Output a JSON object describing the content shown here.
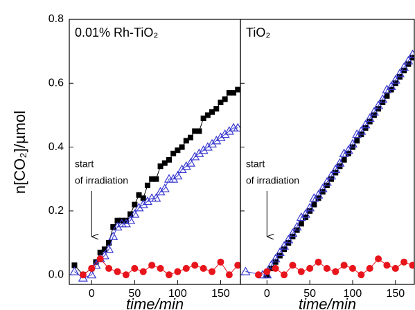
{
  "chart_data": [
    {
      "type": "scatter",
      "title": "0.01% Rh-TiO₂",
      "xlabel": "time/min",
      "ylabel": "n[CO₂]/µmol",
      "annotation": [
        "start",
        "of irradiation"
      ],
      "xlim": [
        -26,
        173
      ],
      "xticks": [
        0,
        50,
        100,
        150
      ],
      "ylim": [
        -0.03,
        0.8
      ],
      "yticks": [
        {
          "value": 0,
          "label": "0.0"
        },
        0.2,
        0.4,
        0.6,
        0.8
      ],
      "series": [
        {
          "color": "#000000",
          "marker": "square",
          "x": [
            -20,
            -10,
            0,
            5,
            10,
            15,
            20,
            25,
            30,
            35,
            40,
            45,
            50,
            55,
            60,
            65,
            70,
            75,
            80,
            85,
            90,
            95,
            100,
            105,
            110,
            115,
            120,
            125,
            130,
            135,
            140,
            145,
            150,
            155,
            160,
            165,
            170
          ],
          "values": [
            0.03,
            0.0,
            0.02,
            0.04,
            0.07,
            0.08,
            0.1,
            0.15,
            0.17,
            0.17,
            0.17,
            0.19,
            0.22,
            0.25,
            0.24,
            0.28,
            0.3,
            0.3,
            0.34,
            0.35,
            0.36,
            0.38,
            0.39,
            0.4,
            0.42,
            0.43,
            0.45,
            0.45,
            0.49,
            0.5,
            0.51,
            0.52,
            0.54,
            0.55,
            0.57,
            0.57,
            0.58
          ]
        },
        {
          "color": "#3a3ad0",
          "marker": "open-triangle",
          "x": [
            -20,
            -10,
            0,
            5,
            10,
            15,
            20,
            25,
            30,
            35,
            40,
            45,
            50,
            55,
            60,
            65,
            70,
            75,
            80,
            85,
            90,
            95,
            100,
            105,
            110,
            115,
            120,
            125,
            130,
            135,
            140,
            145,
            150,
            155,
            160,
            165,
            170
          ],
          "values": [
            0.01,
            -0.01,
            0.0,
            0.03,
            0.05,
            0.06,
            0.08,
            0.12,
            0.15,
            0.16,
            0.16,
            0.17,
            0.19,
            0.21,
            0.22,
            0.23,
            0.24,
            0.24,
            0.26,
            0.27,
            0.3,
            0.3,
            0.31,
            0.33,
            0.34,
            0.35,
            0.37,
            0.38,
            0.39,
            0.4,
            0.41,
            0.42,
            0.43,
            0.44,
            0.45,
            0.46,
            0.46
          ]
        },
        {
          "color": "#e8141c",
          "marker": "circle",
          "x": [
            -10,
            0,
            10,
            20,
            30,
            40,
            50,
            60,
            70,
            80,
            90,
            100,
            110,
            120,
            130,
            140,
            150,
            160,
            170
          ],
          "values": [
            0.0,
            0.02,
            0.05,
            0.02,
            0.01,
            0.0,
            0.02,
            0.01,
            0.03,
            0.02,
            0.0,
            0.01,
            0.02,
            0.03,
            0.02,
            0.01,
            0.04,
            0.0,
            0.03
          ]
        }
      ]
    },
    {
      "type": "scatter",
      "title": "TiO₂",
      "xlabel": "time/min",
      "annotation": [
        "start",
        "of irradiation"
      ],
      "xlim": [
        -31,
        172
      ],
      "xticks": [
        0,
        50,
        100,
        150
      ],
      "ylim": [
        -0.03,
        0.8
      ],
      "series": [
        {
          "color": "#000000",
          "marker": "square",
          "x": [
            0,
            5,
            10,
            15,
            20,
            25,
            30,
            35,
            40,
            45,
            50,
            55,
            60,
            65,
            70,
            75,
            80,
            85,
            90,
            95,
            100,
            105,
            110,
            115,
            120,
            125,
            130,
            135,
            140,
            145,
            150,
            155,
            160,
            165,
            170
          ],
          "values": [
            0.0,
            0.02,
            0.04,
            0.06,
            0.08,
            0.1,
            0.12,
            0.14,
            0.16,
            0.18,
            0.2,
            0.22,
            0.24,
            0.26,
            0.28,
            0.3,
            0.32,
            0.34,
            0.36,
            0.38,
            0.4,
            0.42,
            0.44,
            0.46,
            0.48,
            0.5,
            0.52,
            0.54,
            0.56,
            0.58,
            0.6,
            0.62,
            0.64,
            0.66,
            0.68
          ]
        },
        {
          "color": "#3a3ad0",
          "marker": "open-triangle",
          "x": [
            -25,
            -5,
            0,
            5,
            10,
            15,
            20,
            25,
            30,
            35,
            40,
            45,
            50,
            55,
            60,
            65,
            70,
            75,
            80,
            85,
            90,
            95,
            100,
            105,
            110,
            115,
            120,
            125,
            130,
            135,
            140,
            145,
            150,
            155,
            160,
            165,
            170
          ],
          "values": [
            0.01,
            0.0,
            0.0,
            0.03,
            0.05,
            0.07,
            0.09,
            0.11,
            0.13,
            0.15,
            0.18,
            0.19,
            0.21,
            0.24,
            0.25,
            0.27,
            0.29,
            0.31,
            0.33,
            0.35,
            0.38,
            0.39,
            0.41,
            0.44,
            0.45,
            0.47,
            0.49,
            0.51,
            0.53,
            0.55,
            0.58,
            0.59,
            0.61,
            0.63,
            0.65,
            0.67,
            0.69
          ]
        },
        {
          "color": "#e8141c",
          "marker": "circle",
          "x": [
            -10,
            0,
            10,
            20,
            30,
            40,
            50,
            60,
            70,
            80,
            90,
            100,
            110,
            120,
            130,
            140,
            150,
            160,
            170
          ],
          "values": [
            0.0,
            0.01,
            0.02,
            0.0,
            0.03,
            0.01,
            0.02,
            0.04,
            0.02,
            0.01,
            0.03,
            0.02,
            0.0,
            0.02,
            0.05,
            0.03,
            0.02,
            0.04,
            0.03
          ]
        }
      ]
    }
  ]
}
